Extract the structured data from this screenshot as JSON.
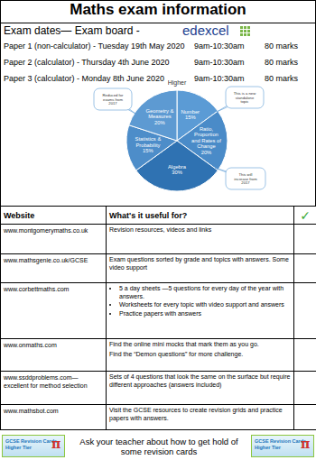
{
  "header": {
    "title": "Maths exam information",
    "exam_line": "Exam dates— Exam board -",
    "exam_board": "edexcel"
  },
  "papers": [
    {
      "name": "Paper 1 (non-calculator) - Tuesday 19th May 2020",
      "time": "9am-10:30am",
      "marks": "80 marks"
    },
    {
      "name": "Paper 2 (calculator) - Thursday 4th June 2020",
      "time": "9am-10:30am",
      "marks": "80 marks"
    },
    {
      "name": "Paper 3 (calculator) - Monday 8th June 2020",
      "time": "9am-10:30am",
      "marks": "80 marks"
    }
  ],
  "chart_data": {
    "type": "pie",
    "title": "Higher",
    "categories": [
      "Number",
      "Ratio, Proportion and Rates of Change",
      "Algebra",
      "Statistics & Probability",
      "Geometry & Measures"
    ],
    "values": [
      15,
      20,
      30,
      15,
      20
    ],
    "value_labels": [
      "15%",
      "20%",
      "30%",
      "15%",
      "20%"
    ],
    "colors": [
      "#5b9bd5",
      "#4a8bc8",
      "#2f72b2",
      "#4d8dc9",
      "#5d9ad2"
    ],
    "data_labels": true,
    "annotations": [
      "Reduced for exams from 2017",
      "This is a new standalone topic",
      "This will increase from 2017"
    ]
  },
  "table": {
    "header": [
      "Website",
      "What's it useful for?",
      "✓"
    ],
    "rows": [
      {
        "website": "www.montgomerymaths.co.uk",
        "lines": [
          "Revision resources, videos and links"
        ]
      },
      {
        "website": "www.mathsgenie.co.uk/GCSE",
        "lines": [
          "Exam questions sorted by grade and topics with answers. Some video support"
        ]
      },
      {
        "website": "www.corbettmaths.com",
        "bullets": [
          "5 a day sheets —5 questions for every day of the year with answers.",
          "Worksheets for every topic with video support and answers",
          "Practice papers with answers"
        ]
      },
      {
        "website": "www.onmaths.com",
        "lines": [
          "Find the online mini mocks that mark them as you go.",
          "Find the “Demon questions” for more challenge."
        ]
      },
      {
        "website": "www.ssddproblems.com— excellent for method selection",
        "lines": [
          "Sets of 4 questions that look the same on the surface but require different approaches (answers included)"
        ]
      },
      {
        "website": "www.mathsbot.com",
        "lines": [
          "Visit the GCSE resources to create revision grids and practice papers with answers."
        ]
      }
    ]
  },
  "footer": {
    "text": "Ask your teacher about how to get hold of some revision cards",
    "card": {
      "title": "GCSE Revision Cards",
      "subtitle": "Higher Tier",
      "symbol": "π"
    }
  }
}
